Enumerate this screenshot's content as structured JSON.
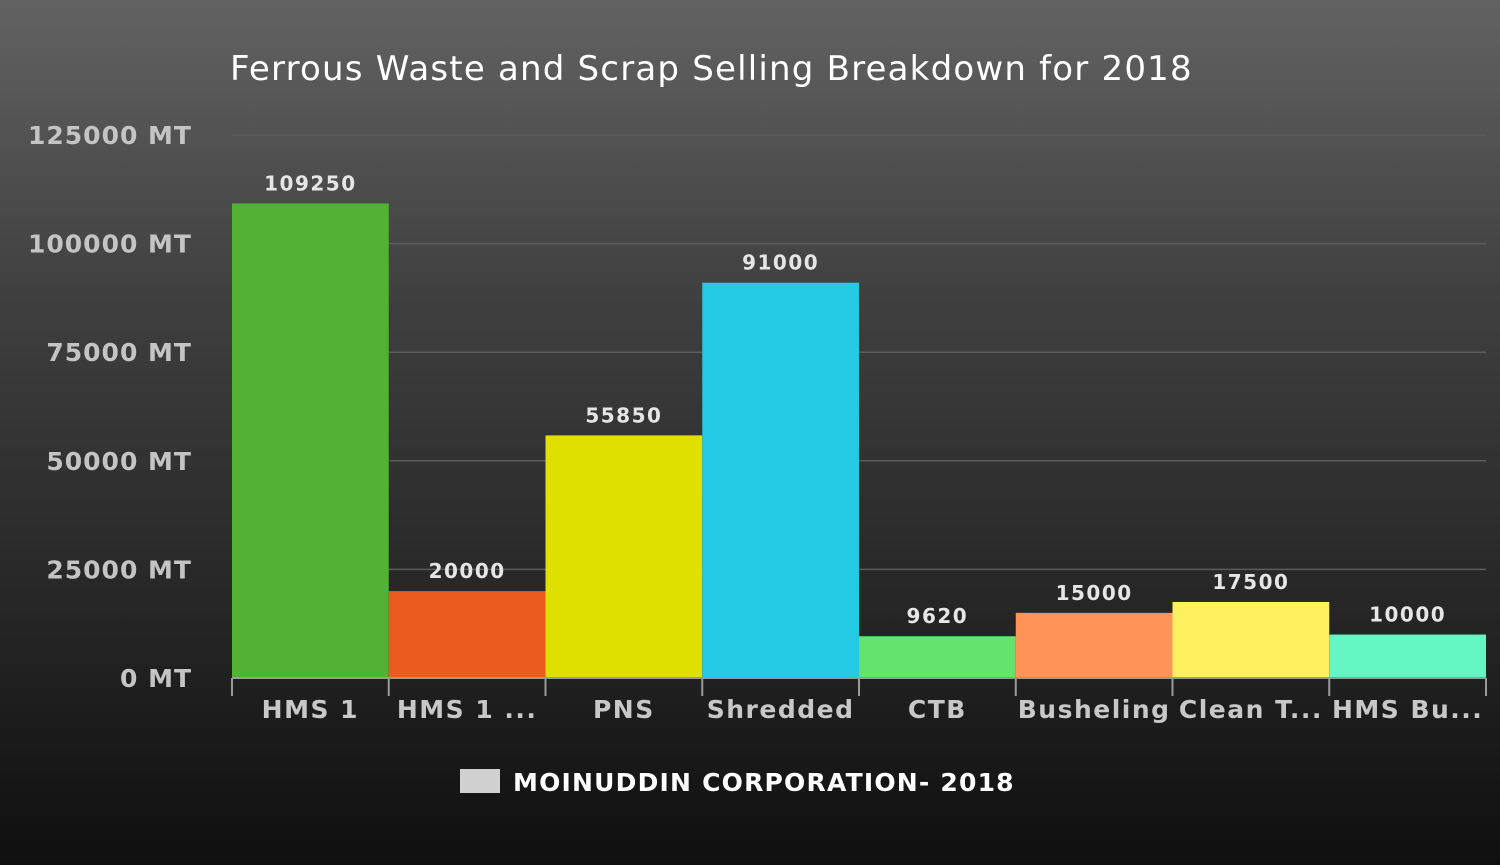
{
  "chart_data": {
    "type": "bar",
    "title": "Ferrous Waste and Scrap Selling Breakdown for 2018",
    "categories": [
      "HMS 1",
      "HMS 1 ...",
      "PNS",
      "Shredded",
      "CTB",
      "Busheling",
      "Clean T...",
      "HMS Bu..."
    ],
    "series": [
      {
        "name": "MOINUDDIN CORPORATION- 2018",
        "values": [
          109250,
          20000,
          55850,
          91000,
          9620,
          15000,
          17500,
          10000
        ],
        "data_labels": [
          "109250",
          "20000",
          "55850",
          "91000",
          "9620",
          "15000",
          "17500",
          "10000"
        ],
        "colors": [
          "#52b233",
          "#eb5a1e",
          "#dfe000",
          "#24c9e3",
          "#64e46f",
          "#ff9358",
          "#fff05f",
          "#65f7c3"
        ]
      }
    ],
    "yticks": [
      {
        "value": 0,
        "label": "0 MT"
      },
      {
        "value": 25000,
        "label": "25000 MT"
      },
      {
        "value": 50000,
        "label": "50000 MT"
      },
      {
        "value": 75000,
        "label": "75000 MT"
      },
      {
        "value": 100000,
        "label": "100000 MT"
      },
      {
        "value": 125000,
        "label": "125000 MT"
      }
    ],
    "ylim": [
      0,
      125000
    ],
    "xlabel": "",
    "ylabel": "",
    "grid": true,
    "legend": {
      "position": "bottom",
      "label": "MOINUDDIN CORPORATION- 2018",
      "swatch_color": "#d0d0d0"
    }
  }
}
